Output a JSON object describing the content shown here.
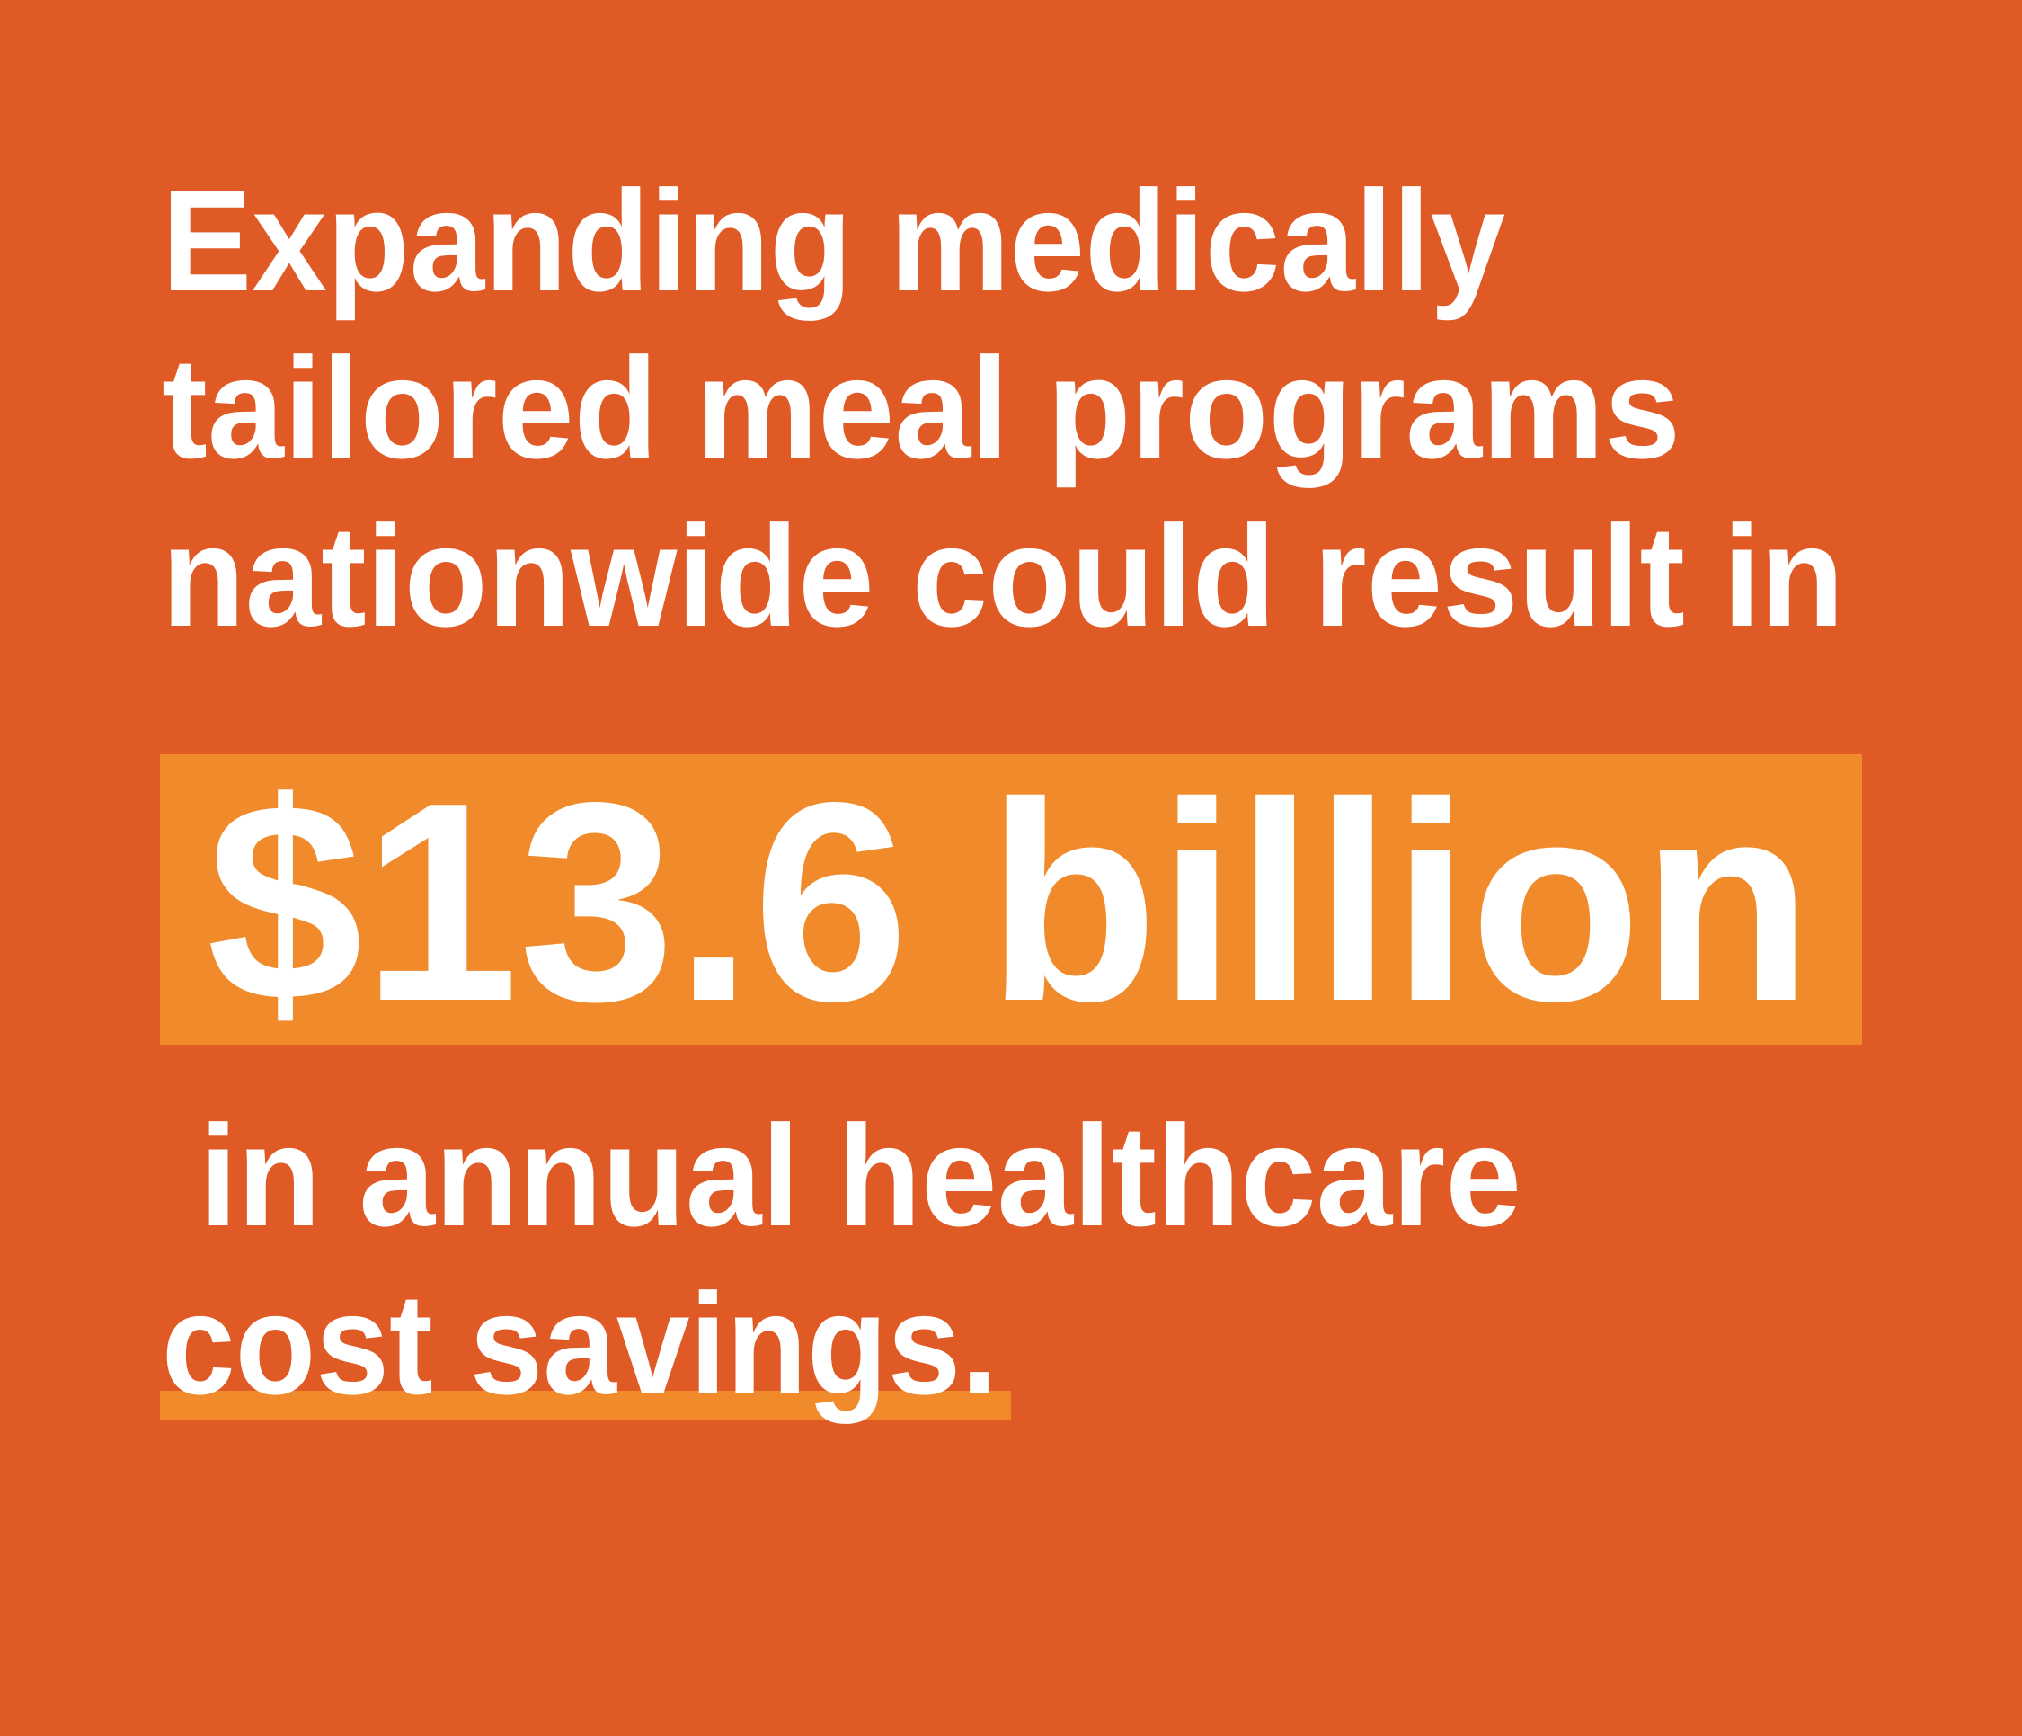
{
  "headline": {
    "lines": [
      "Expanding medically",
      "tailored meal programs",
      "nationwide could result in"
    ]
  },
  "highlight": {
    "text": "$13.6 billion"
  },
  "closing": {
    "lines": [
      "in annual healthcare",
      "cost savings."
    ]
  }
}
